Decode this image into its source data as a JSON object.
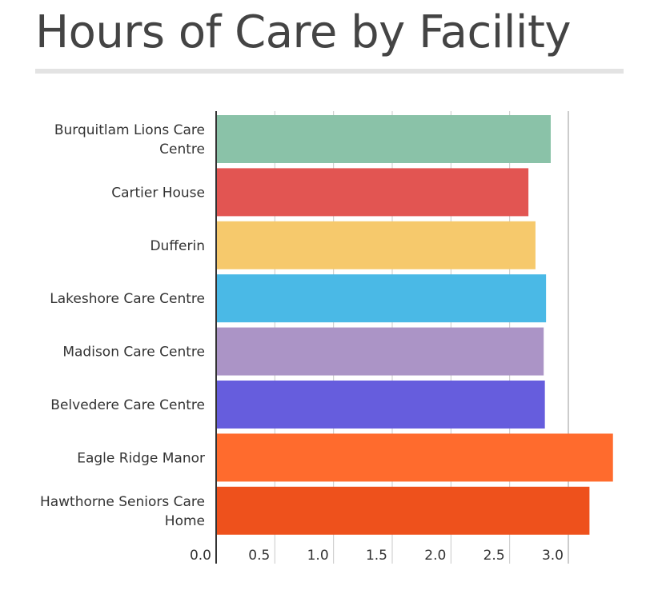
{
  "title": "Hours of Care by Facility",
  "chart_data": {
    "type": "bar",
    "orientation": "horizontal",
    "title": "Hours of Care by Facility",
    "xlabel": "",
    "ylabel": "",
    "categories": [
      [
        "Burquitlam Lions Care",
        "Centre"
      ],
      [
        "Cartier House"
      ],
      [
        "Dufferin"
      ],
      [
        "Lakeshore Care Centre"
      ],
      [
        "Madison Care Centre"
      ],
      [
        "Belvedere Care Centre"
      ],
      [
        "Eagle Ridge Manor"
      ],
      [
        "Hawthorne Seniors Care",
        "Home"
      ]
    ],
    "values": [
      2.85,
      2.66,
      2.72,
      2.81,
      2.79,
      2.8,
      3.38,
      3.18
    ],
    "colors": [
      "#8ac2a8",
      "#e25552",
      "#f6c96c",
      "#4ab9e6",
      "#ab94c6",
      "#665ddd",
      "#ff6b2d",
      "#ee511c"
    ],
    "xticks": [
      "0.0",
      "0.5",
      "1.0",
      "1.5",
      "2.0",
      "2.5",
      "3.0"
    ],
    "xlim": [
      0,
      3.4
    ],
    "grid": true,
    "legend": "none"
  }
}
